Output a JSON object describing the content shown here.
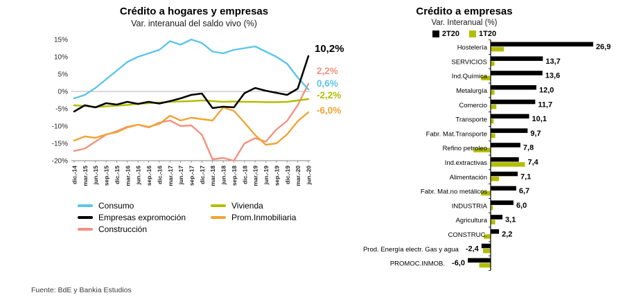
{
  "footer": "Fuente: BdE y Bankia Estudios",
  "left_chart": {
    "title": "Crédito a hogares y empresas",
    "subtitle": "Var. interanual del saldo vivo (%)",
    "end_labels": [
      {
        "text": "10,2%",
        "color": "#000000",
        "series": "Empresas expromoción"
      },
      {
        "text": "2,2%",
        "color": "#F4907E",
        "series": "Construcción"
      },
      {
        "text": "0,6%",
        "color": "#5BC5E9",
        "series": "Consumo"
      },
      {
        "text": "-2,2%",
        "color": "#B2BE00",
        "series": "Vivienda"
      },
      {
        "text": "-6,0%",
        "color": "#F0A432",
        "series": "Prom.Inmobiliaria"
      }
    ],
    "legend": [
      {
        "label": "Consumo",
        "color": "#5BC5E9"
      },
      {
        "label": "Vivienda",
        "color": "#B2BE00"
      },
      {
        "label": "Empresas expromoción",
        "color": "#000000"
      },
      {
        "label": "Prom.Inmobiliaria",
        "color": "#F0A432"
      },
      {
        "label": "Construcción",
        "color": "#F4907E"
      }
    ]
  },
  "right_chart": {
    "title": "Crédito a empresas",
    "subtitle": "Var. Interanual (%)",
    "legend": [
      {
        "label": "2T20",
        "color": "#000000"
      },
      {
        "label": "1T20",
        "color": "#B2BE00"
      }
    ]
  },
  "chart_data": [
    {
      "type": "line",
      "title": "Crédito a hogares y empresas",
      "subtitle": "Var. interanual del saldo vivo (%)",
      "ylabel": "Var. interanual (%)",
      "ylim": [
        -20,
        15
      ],
      "yticks": [
        "15%",
        "10%",
        "5%",
        "0%",
        "-5%",
        "-10%",
        "-15%",
        "-20%"
      ],
      "x": [
        "dic.-14",
        "mar.-15",
        "jun.-15",
        "sep.-15",
        "dic.-15",
        "mar.-16",
        "jun.-16",
        "sep.-16",
        "dic.-16",
        "mar.-17",
        "jun.-17",
        "sep.-17",
        "dic.-17",
        "mar.-18",
        "jun.-18",
        "sep.-18",
        "dic.-18",
        "mar.-19",
        "jun.-19",
        "sep.-19",
        "dic.-19",
        "mar.-20",
        "jun.-20"
      ],
      "series": [
        {
          "name": "Consumo",
          "color": "#5BC5E9",
          "end_value": 0.6,
          "values": [
            -2.0,
            -1.0,
            1.0,
            3.5,
            6.0,
            8.5,
            10.0,
            11.0,
            12.0,
            14.5,
            13.5,
            15.0,
            14.0,
            11.5,
            11.0,
            12.0,
            12.5,
            13.0,
            11.5,
            10.0,
            8.0,
            4.0,
            0.6
          ]
        },
        {
          "name": "Empresas expromoción",
          "color": "#000000",
          "end_value": 10.2,
          "values": [
            -5.8,
            -4.0,
            -4.6,
            -3.4,
            -3.8,
            -3.0,
            -3.6,
            -3.0,
            -3.5,
            -2.8,
            -2.0,
            -1.0,
            -0.6,
            -4.8,
            -4.4,
            -4.6,
            -0.5,
            1.0,
            0.2,
            -0.4,
            -1.0,
            0.8,
            10.2
          ]
        },
        {
          "name": "Construcción",
          "color": "#F4907E",
          "end_value": 2.2,
          "values": [
            -17.2,
            -16.5,
            -14.5,
            -12.5,
            -11.5,
            -10.2,
            -9.6,
            -10.4,
            -9.0,
            -8.4,
            -10.0,
            -9.8,
            -12.5,
            -19.6,
            -19.2,
            -20.0,
            -15.0,
            -13.5,
            -14.5,
            -11.0,
            -8.5,
            -4.0,
            2.2
          ]
        },
        {
          "name": "Vivienda",
          "color": "#B2BE00",
          "end_value": -2.2,
          "values": [
            -4.0,
            -4.2,
            -4.5,
            -4.3,
            -4.1,
            -3.9,
            -3.6,
            -3.4,
            -3.2,
            -3.0,
            -2.9,
            -2.8,
            -2.6,
            -2.8,
            -3.0,
            -2.9,
            -3.0,
            -3.0,
            -3.1,
            -3.1,
            -3.0,
            -2.6,
            -2.2
          ]
        },
        {
          "name": "Prom.Inmobiliaria",
          "color": "#F0A432",
          "end_value": -6.0,
          "values": [
            -14.2,
            -13.0,
            -13.4,
            -12.4,
            -11.8,
            -10.4,
            -9.6,
            -10.2,
            -9.4,
            -7.0,
            -8.4,
            -7.6,
            -8.0,
            -8.4,
            -4.6,
            -5.6,
            -9.0,
            -12.6,
            -15.4,
            -15.0,
            -12.4,
            -8.6,
            -6.0
          ]
        }
      ],
      "legend_position": "bottom",
      "grid": false
    },
    {
      "type": "bar",
      "orientation": "horizontal",
      "title": "Crédito a empresas",
      "subtitle": "Var. Interanual (%)",
      "xlim": [
        -8,
        30
      ],
      "categories": [
        "Hostelería",
        "SERVICIOS",
        "Ind.Química",
        "Metalurgía",
        "Comercio",
        "Transporte",
        "Fabr. Mat.Transporte",
        "Refino petroleo",
        "Ind.extractivas",
        "Alimentación",
        "Fabr. Mat.no metálicos",
        "INDUSTRIA",
        "Agricultura",
        "CONSTRUC.",
        "Prod. Energía electr. Gas y agua",
        "PROMOC.INMOB."
      ],
      "series": [
        {
          "name": "2T20",
          "color": "#000000",
          "values": [
            26.9,
            13.7,
            13.6,
            12.0,
            11.7,
            10.1,
            9.7,
            7.8,
            7.4,
            7.1,
            6.7,
            6.0,
            3.1,
            2.2,
            -2.4,
            -6.0
          ],
          "labels": [
            "26,9",
            "13,7",
            "13,6",
            "12,0",
            "11,7",
            "10,1",
            "9,7",
            "7,8",
            "7,4",
            "7,1",
            "6,7",
            "6,0",
            "3,1",
            "2,2",
            "-2,4",
            "-6,0"
          ]
        },
        {
          "name": "1T20",
          "color": "#B2BE00",
          "values": [
            3.5,
            1.0,
            -2.5,
            1.0,
            1.5,
            0.8,
            1.2,
            -4.5,
            9.0,
            2.2,
            -2.5,
            0.6,
            1.2,
            -1.8,
            -2.0,
            -3.0
          ]
        }
      ],
      "legend_position": "top",
      "grid": false
    }
  ]
}
